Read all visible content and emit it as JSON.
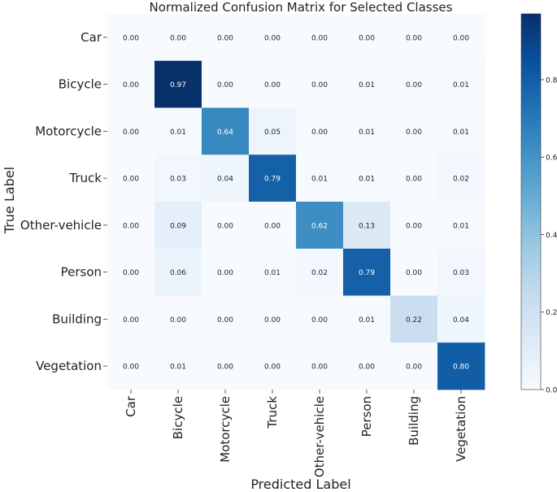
{
  "chart_data": {
    "type": "heatmap",
    "title": "Normalized Confusion Matrix for Selected Classes",
    "xlabel": "Predicted Label",
    "ylabel": "True Label",
    "x_categories": [
      "Car",
      "Bicycle",
      "Motorcycle",
      "Truck",
      "Other-vehicle",
      "Person",
      "Building",
      "Vegetation"
    ],
    "y_categories": [
      "Car",
      "Bicycle",
      "Motorcycle",
      "Truck",
      "Other-vehicle",
      "Person",
      "Building",
      "Vegetation"
    ],
    "values": [
      [
        0.0,
        0.0,
        0.0,
        0.0,
        0.0,
        0.0,
        0.0,
        0.0
      ],
      [
        0.0,
        0.97,
        0.0,
        0.0,
        0.0,
        0.01,
        0.0,
        0.01
      ],
      [
        0.0,
        0.01,
        0.64,
        0.05,
        0.0,
        0.01,
        0.0,
        0.01
      ],
      [
        0.0,
        0.03,
        0.04,
        0.79,
        0.01,
        0.01,
        0.0,
        0.02
      ],
      [
        0.0,
        0.09,
        0.0,
        0.0,
        0.62,
        0.13,
        0.0,
        0.01
      ],
      [
        0.0,
        0.06,
        0.0,
        0.01,
        0.02,
        0.79,
        0.0,
        0.03
      ],
      [
        0.0,
        0.0,
        0.0,
        0.0,
        0.0,
        0.01,
        0.22,
        0.04
      ],
      [
        0.0,
        0.01,
        0.0,
        0.0,
        0.0,
        0.0,
        0.0,
        0.8
      ]
    ],
    "value_format": "0.00",
    "colormap": "Blues",
    "colorbar": {
      "range": [
        0.0,
        0.97
      ],
      "ticks": [
        0.0,
        0.2,
        0.4,
        0.6,
        0.8
      ],
      "tick_labels": [
        "0.0",
        "0.2",
        "0.4",
        "0.6",
        "0.8"
      ]
    }
  }
}
